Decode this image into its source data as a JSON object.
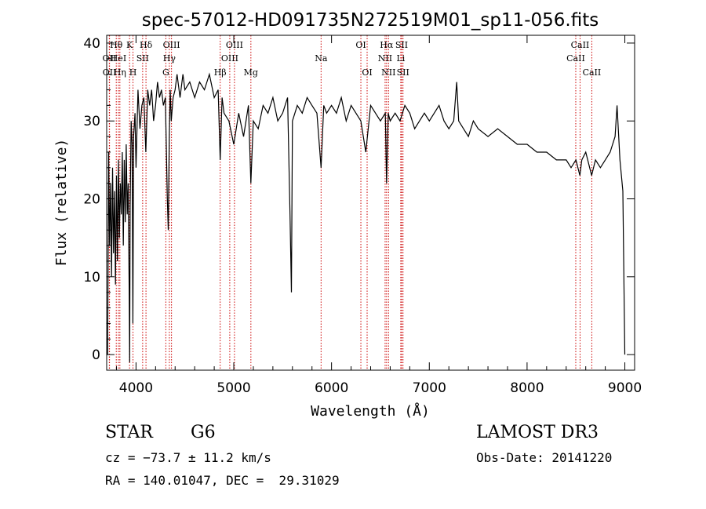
{
  "chart_data": {
    "type": "line",
    "title": "spec-57012-HD091735N272519M01_sp11-056.fits",
    "xlabel": "Wavelength (Å)",
    "ylabel": "Flux (relative)",
    "xlim": [
      3700,
      9100
    ],
    "ylim": [
      -2,
      41
    ],
    "xticks": [
      4000,
      5000,
      6000,
      7000,
      8000,
      9000
    ],
    "yticks": [
      0,
      10,
      20,
      30,
      40
    ],
    "grid": false,
    "line_color": "#000000",
    "marker_color": "#cc0000",
    "series": [
      {
        "x": [
          3710,
          3720,
          3730,
          3740,
          3750,
          3760,
          3770,
          3780,
          3790,
          3800,
          3810,
          3820,
          3830,
          3840,
          3850,
          3860,
          3870,
          3880,
          3890,
          3900,
          3910,
          3920,
          3930,
          3935,
          3940,
          3950,
          3960,
          3968,
          3975,
          3990,
          4000,
          4020,
          4040,
          4060,
          4080,
          4100,
          4120,
          4140,
          4160,
          4180,
          4200,
          4220,
          4240,
          4260,
          4280,
          4300,
          4320,
          4330,
          4340,
          4350,
          4360,
          4380,
          4400,
          4420,
          4450,
          4480,
          4500,
          4550,
          4600,
          4650,
          4700,
          4750,
          4800,
          4840,
          4861,
          4880,
          4900,
          4950,
          5000,
          5050,
          5100,
          5150,
          5175,
          5200,
          5250,
          5300,
          5350,
          5400,
          5450,
          5500,
          5550,
          5575,
          5590,
          5600,
          5650,
          5700,
          5750,
          5800,
          5850,
          5893,
          5920,
          5950,
          6000,
          6050,
          6100,
          6150,
          6200,
          6250,
          6300,
          6350,
          6400,
          6450,
          6500,
          6550,
          6563,
          6580,
          6600,
          6650,
          6700,
          6750,
          6800,
          6850,
          6900,
          6950,
          7000,
          7050,
          7100,
          7150,
          7200,
          7250,
          7280,
          7300,
          7350,
          7400,
          7450,
          7500,
          7600,
          7700,
          7800,
          7900,
          8000,
          8100,
          8200,
          8300,
          8400,
          8450,
          8500,
          8540,
          8560,
          8600,
          8640,
          8660,
          8700,
          8750,
          8800,
          8850,
          8900,
          8920,
          8950,
          8980,
          9000
        ],
        "values": [
          0,
          26,
          14,
          22,
          10,
          24,
          13,
          21,
          9,
          23,
          12,
          25,
          15,
          22,
          18,
          26,
          14,
          25,
          17,
          27,
          18,
          22,
          8,
          -1,
          19,
          30,
          27,
          4,
          28,
          31,
          24,
          34,
          29,
          32,
          33,
          26,
          34,
          32,
          34,
          30,
          32,
          35,
          33,
          34,
          32,
          33,
          20,
          16,
          28,
          34,
          30,
          33,
          34,
          36,
          33,
          36,
          34,
          35,
          33,
          35,
          34,
          36,
          33,
          34,
          25,
          33,
          31,
          30,
          27,
          31,
          28,
          32,
          22,
          30,
          29,
          32,
          31,
          33,
          30,
          31,
          33,
          18,
          8,
          30,
          32,
          31,
          33,
          32,
          31,
          24,
          32,
          31,
          32,
          31,
          33,
          30,
          32,
          31,
          30,
          26,
          32,
          31,
          30,
          31,
          22,
          31,
          30,
          31,
          30,
          32,
          31,
          29,
          30,
          31,
          30,
          31,
          32,
          30,
          29,
          30,
          35,
          30,
          29,
          28,
          30,
          29,
          28,
          29,
          28,
          27,
          27,
          26,
          26,
          25,
          25,
          24,
          25,
          23,
          25,
          26,
          24,
          23,
          25,
          24,
          25,
          26,
          28,
          32,
          25,
          21,
          0
        ]
      }
    ],
    "line_markers": [
      {
        "label": "Hθ",
        "wl": 3798,
        "row": 1
      },
      {
        "label": "OII",
        "wl": 3727,
        "row": 2
      },
      {
        "label": "OII",
        "wl": 3729,
        "row": 3
      },
      {
        "label": "K",
        "wl": 3934,
        "row": 1
      },
      {
        "label": "HeI",
        "wl": 3820,
        "row": 2
      },
      {
        "label": "Hη",
        "wl": 3835,
        "row": 3
      },
      {
        "label": "SII",
        "wl": 4068,
        "row": 2
      },
      {
        "label": "H",
        "wl": 3969,
        "row": 3
      },
      {
        "label": "Hδ",
        "wl": 4102,
        "row": 1
      },
      {
        "label": "OIII",
        "wl": 4363,
        "row": 1
      },
      {
        "label": "Hγ",
        "wl": 4341,
        "row": 2
      },
      {
        "label": "G",
        "wl": 4305,
        "row": 3
      },
      {
        "label": "Hβ",
        "wl": 4861,
        "row": 3
      },
      {
        "label": "OIII",
        "wl": 5007,
        "row": 1
      },
      {
        "label": "OIII",
        "wl": 4959,
        "row": 2
      },
      {
        "label": "Mg",
        "wl": 5175,
        "row": 3
      },
      {
        "label": "Na",
        "wl": 5893,
        "row": 2
      },
      {
        "label": "OI",
        "wl": 6300,
        "row": 1
      },
      {
        "label": "OI",
        "wl": 6364,
        "row": 3
      },
      {
        "label": "Hα",
        "wl": 6563,
        "row": 1
      },
      {
        "label": "NII",
        "wl": 6548,
        "row": 2
      },
      {
        "label": "NII",
        "wl": 6583,
        "row": 3
      },
      {
        "label": "SII",
        "wl": 6717,
        "row": 1
      },
      {
        "label": "Li",
        "wl": 6708,
        "row": 2
      },
      {
        "label": "SII",
        "wl": 6731,
        "row": 3
      },
      {
        "label": "CaII",
        "wl": 8542,
        "row": 1
      },
      {
        "label": "CaII",
        "wl": 8498,
        "row": 2
      },
      {
        "label": "CaII",
        "wl": 8662,
        "row": 3
      }
    ]
  },
  "info": {
    "class": "STAR",
    "subclass": "G6",
    "survey": "LAMOST DR3",
    "cz": "cz = −73.7 ± 11.2 km/s",
    "obs_date": "Obs-Date: 20141220",
    "radec": "RA = 140.01047, DEC =  29.31029"
  }
}
